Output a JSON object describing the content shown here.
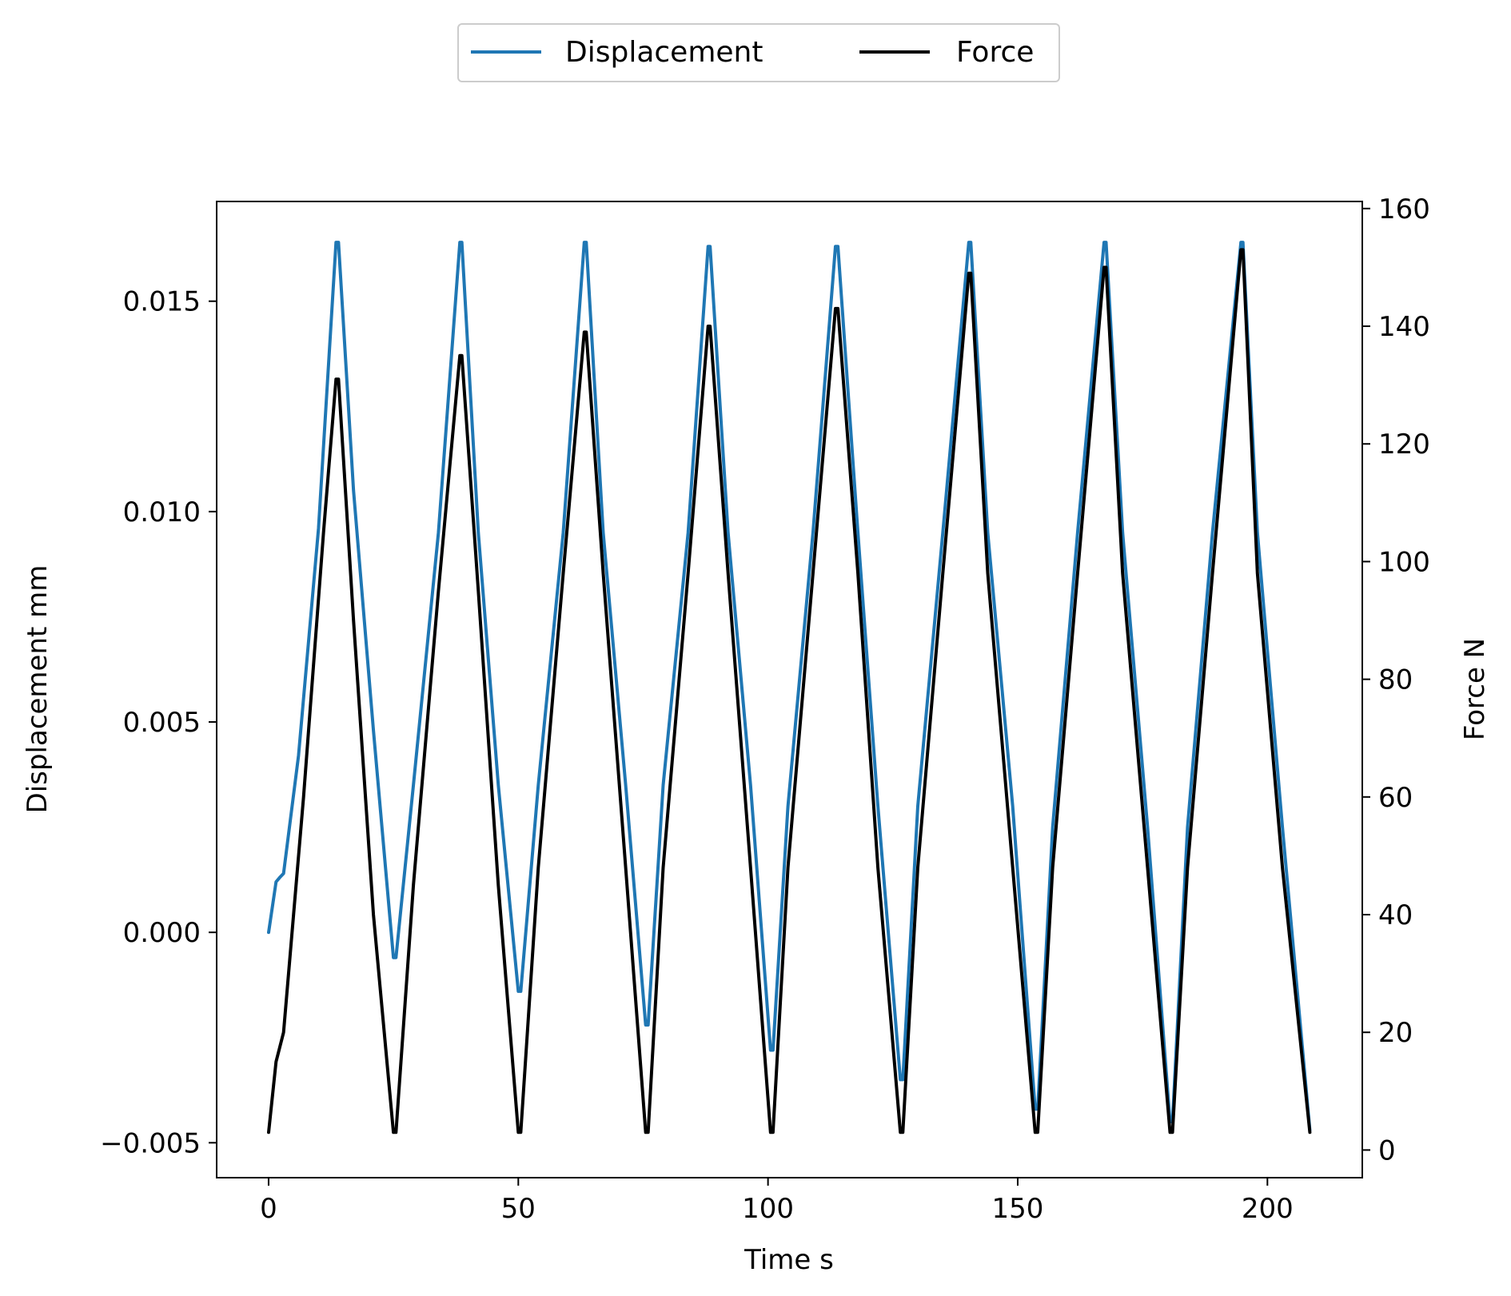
{
  "chart_data": {
    "type": "line",
    "title": "",
    "xlabel": "Time s",
    "ylabel": "Displacement mm",
    "y2label": "Force N",
    "xlim": [
      -10.4,
      219.0
    ],
    "ylim": [
      -0.00583,
      0.01737
    ],
    "y2lim": [
      -4.7,
      161.2
    ],
    "x_ticks": [
      0,
      50,
      100,
      150,
      200
    ],
    "x_tick_labels": [
      "0",
      "50",
      "100",
      "150",
      "200"
    ],
    "y_ticks": [
      -0.005,
      0.0,
      0.005,
      0.01,
      0.015
    ],
    "y_tick_labels": [
      "−0.005",
      "0.000",
      "0.005",
      "0.010",
      "0.015"
    ],
    "y2_ticks": [
      0,
      20,
      40,
      60,
      80,
      100,
      120,
      140,
      160
    ],
    "y2_tick_labels": [
      "0",
      "20",
      "40",
      "60",
      "80",
      "100",
      "120",
      "140",
      "160"
    ],
    "grid": false,
    "legend_position": "top-center",
    "series": [
      {
        "name": "Displacement",
        "axis": "left",
        "color": "#1f77b4",
        "x": [
          0,
          1.5,
          2.2,
          3,
          6,
          10,
          13.5,
          14,
          17,
          21,
          25,
          25.5,
          29,
          34,
          38.3,
          38.7,
          42,
          46,
          50,
          50.5,
          54,
          59,
          63.2,
          63.6,
          67,
          71.5,
          75.5,
          76,
          79,
          84,
          88,
          88.4,
          92,
          96.5,
          100.5,
          101,
          104,
          109,
          113.5,
          114,
          118,
          122,
          126.5,
          127,
          130,
          135,
          140.2,
          140.6,
          144,
          149,
          153.5,
          154,
          157,
          162,
          167.3,
          167.7,
          171,
          176,
          180.5,
          181,
          184,
          189,
          194.7,
          195.1,
          198,
          203,
          208.5
        ],
        "values": [
          0.0,
          0.0012,
          0.0013,
          0.0014,
          0.0042,
          0.0096,
          0.0164,
          0.0164,
          0.0105,
          0.0048,
          -0.0006,
          -0.0006,
          0.0035,
          0.0095,
          0.0164,
          0.0164,
          0.0095,
          0.0035,
          -0.0014,
          -0.0014,
          0.0035,
          0.0095,
          0.0164,
          0.0164,
          0.0095,
          0.0035,
          -0.0022,
          -0.0022,
          0.0035,
          0.0095,
          0.0163,
          0.0163,
          0.0095,
          0.0035,
          -0.0028,
          -0.0028,
          0.003,
          0.0095,
          0.0163,
          0.0163,
          0.0095,
          0.003,
          -0.0035,
          -0.0035,
          0.003,
          0.0095,
          0.0164,
          0.0164,
          0.0095,
          0.003,
          -0.0042,
          -0.0042,
          0.0025,
          0.0095,
          0.0164,
          0.0164,
          0.0095,
          0.0025,
          -0.0045,
          -0.0045,
          0.0025,
          0.0095,
          0.0164,
          0.0164,
          0.0095,
          0.0025,
          -0.0047
        ]
      },
      {
        "name": "Force",
        "axis": "right",
        "color": "#000000",
        "x": [
          0,
          1.5,
          3,
          7,
          11,
          13.5,
          14,
          17,
          21,
          25,
          25.5,
          29,
          34,
          38.3,
          38.7,
          42,
          46,
          50,
          50.5,
          54,
          59,
          63.2,
          63.6,
          67,
          71.5,
          75.5,
          76,
          79,
          84,
          88,
          88.4,
          92,
          96.5,
          100.5,
          101,
          104,
          109,
          113.5,
          114,
          118,
          122,
          126.5,
          127,
          130,
          135,
          140.2,
          140.6,
          144,
          149,
          153.5,
          154,
          157,
          162,
          167.3,
          167.7,
          171,
          176,
          180.5,
          181,
          184,
          189,
          194.7,
          195.1,
          198,
          203,
          208.5
        ],
        "values": [
          3,
          15,
          20,
          60,
          105,
          131,
          131,
          90,
          40,
          3,
          3,
          45,
          95,
          135,
          135,
          95,
          45,
          3,
          3,
          48,
          98,
          139,
          139,
          98,
          48,
          3,
          3,
          48,
          98,
          140,
          140,
          98,
          48,
          3,
          3,
          48,
          98,
          143,
          143,
          98,
          48,
          3,
          3,
          48,
          98,
          149,
          149,
          98,
          48,
          3,
          3,
          48,
          98,
          150,
          150,
          98,
          48,
          3,
          3,
          48,
          98,
          153,
          153,
          98,
          48,
          3
        ]
      }
    ]
  }
}
